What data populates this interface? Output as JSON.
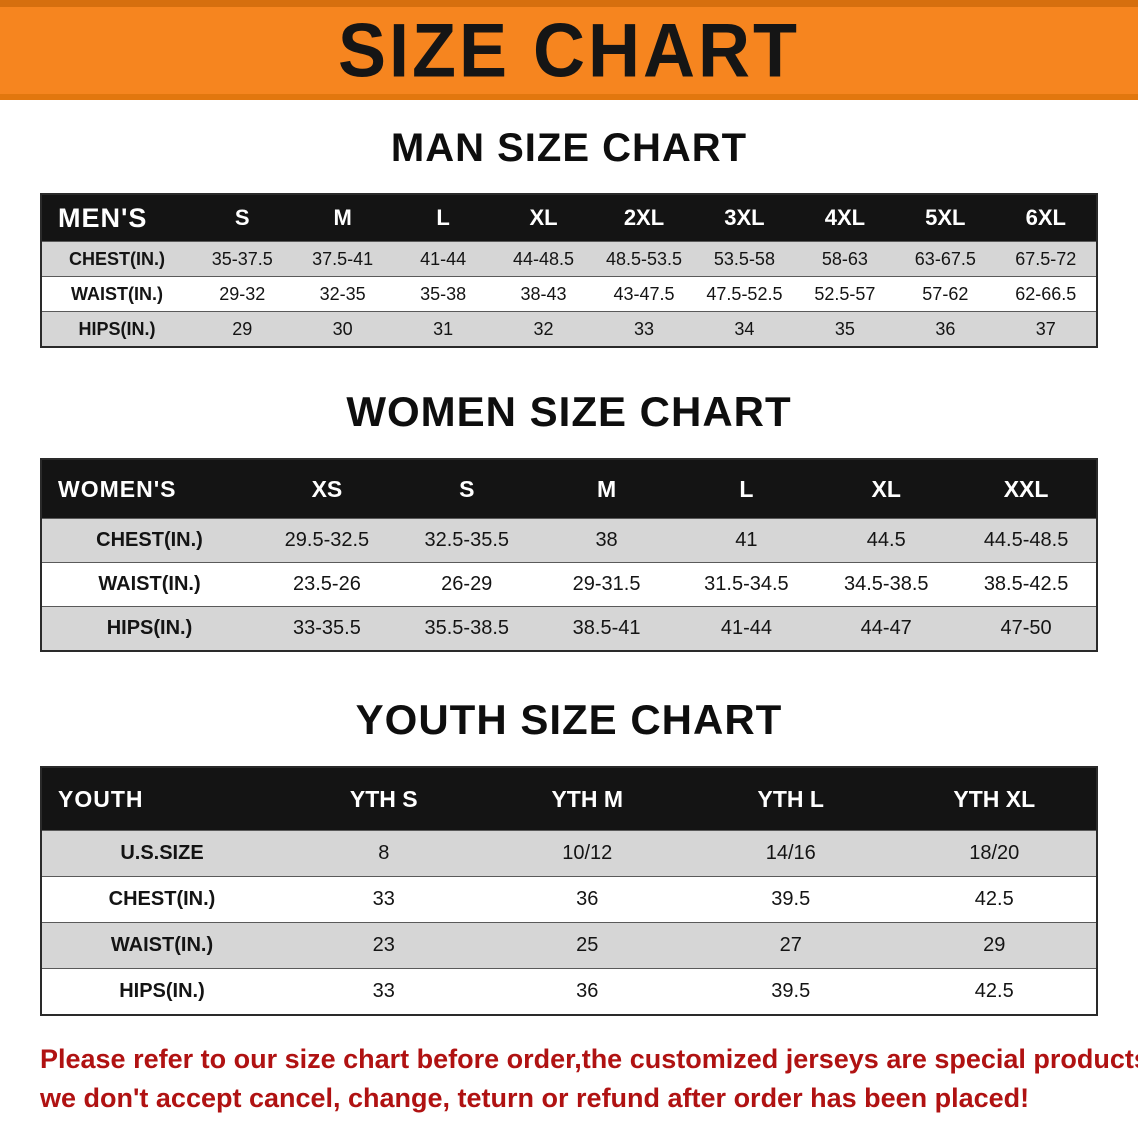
{
  "colors": {
    "banner_bg": "#f6851f",
    "banner_border": "#d66f0e",
    "table_header_bg": "#141414",
    "row_stripe": "#d6d6d6",
    "footer_text": "#b01212"
  },
  "banner": {
    "title": "SIZE CHART"
  },
  "sections": {
    "men": {
      "heading": "MAN SIZE CHART",
      "header": [
        "MEN'S",
        "S",
        "M",
        "L",
        "XL",
        "2XL",
        "3XL",
        "4XL",
        "5XL",
        "6XL"
      ],
      "rows": [
        {
          "label": "CHEST(IN.)",
          "values": [
            "35-37.5",
            "37.5-41",
            "41-44",
            "44-48.5",
            "48.5-53.5",
            "53.5-58",
            "58-63",
            "63-67.5",
            "67.5-72"
          ]
        },
        {
          "label": "WAIST(IN.)",
          "values": [
            "29-32",
            "32-35",
            "35-38",
            "38-43",
            "43-47.5",
            "47.5-52.5",
            "52.5-57",
            "57-62",
            "62-66.5"
          ]
        },
        {
          "label": "HIPS(IN.)",
          "values": [
            "29",
            "30",
            "31",
            "32",
            "33",
            "34",
            "35",
            "36",
            "37"
          ]
        }
      ]
    },
    "women": {
      "heading": "WOMEN SIZE CHART",
      "header": [
        "WOMEN'S",
        "XS",
        "S",
        "M",
        "L",
        "XL",
        "XXL"
      ],
      "rows": [
        {
          "label": "CHEST(IN.)",
          "values": [
            "29.5-32.5",
            "32.5-35.5",
            "38",
            "41",
            "44.5",
            "44.5-48.5"
          ]
        },
        {
          "label": "WAIST(IN.)",
          "values": [
            "23.5-26",
            "26-29",
            "29-31.5",
            "31.5-34.5",
            "34.5-38.5",
            "38.5-42.5"
          ]
        },
        {
          "label": "HIPS(IN.)",
          "values": [
            "33-35.5",
            "35.5-38.5",
            "38.5-41",
            "41-44",
            "44-47",
            "47-50"
          ]
        }
      ]
    },
    "youth": {
      "heading": "YOUTH SIZE CHART",
      "header": [
        "YOUTH",
        "YTH S",
        "YTH M",
        "YTH L",
        "YTH XL"
      ],
      "rows": [
        {
          "label": "U.S.SIZE",
          "values": [
            "8",
            "10/12",
            "14/16",
            "18/20"
          ]
        },
        {
          "label": "CHEST(IN.)",
          "values": [
            "33",
            "36",
            "39.5",
            "42.5"
          ]
        },
        {
          "label": "WAIST(IN.)",
          "values": [
            "23",
            "25",
            "27",
            "29"
          ]
        },
        {
          "label": "HIPS(IN.)",
          "values": [
            "33",
            "36",
            "39.5",
            "42.5"
          ]
        }
      ]
    }
  },
  "footer": {
    "line1": "Please refer to our size chart before order,the customized jerseys are special products,",
    "line2": "we don't accept cancel, change, teturn or refund after order has been placed!"
  }
}
